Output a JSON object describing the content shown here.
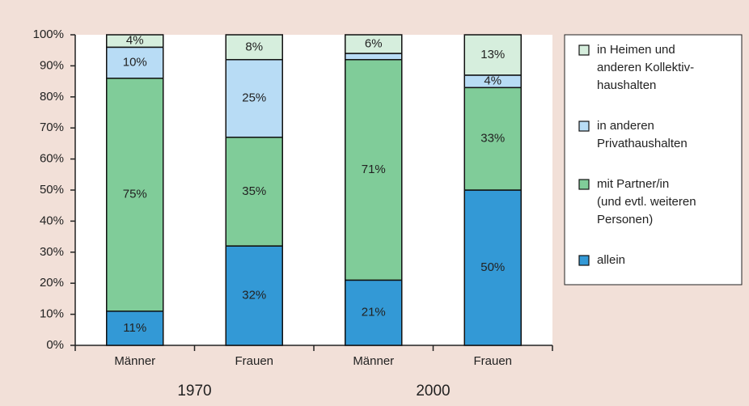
{
  "chart_data": {
    "type": "stacked_bar",
    "categories": [
      "Männer",
      "Frauen",
      "Männer",
      "Frauen"
    ],
    "groups": [
      "1970",
      "2000"
    ],
    "series": [
      {
        "name": "allein",
        "color": "#3399d6",
        "values": [
          11,
          32,
          21,
          50
        ],
        "value_labels": [
          "11%",
          "32%",
          "21%",
          "50%"
        ]
      },
      {
        "name": "mit Partner/in\n(und evtl. weiteren\nPersonen)",
        "color": "#80cc99",
        "values": [
          75,
          35,
          71,
          33
        ],
        "value_labels": [
          "75%",
          "35%",
          "71%",
          "33%"
        ]
      },
      {
        "name": "in anderen\nPrivathaushalten",
        "color": "#b8dcf5",
        "values": [
          10,
          25,
          2,
          4
        ],
        "value_labels": [
          "10%",
          "25%",
          null,
          "4%"
        ]
      },
      {
        "name": "in Heimen und\nanderen Kollektiv-\nhaushalten",
        "color": "#d6eedd",
        "values": [
          4,
          8,
          6,
          13
        ],
        "value_labels": [
          "4%",
          "8%",
          "6%",
          "13%"
        ]
      }
    ],
    "ylim": [
      0,
      100
    ],
    "yticks": [
      {
        "value": 0,
        "label": "0%"
      },
      {
        "value": 10,
        "label": "10%"
      },
      {
        "value": 20,
        "label": "20%"
      },
      {
        "value": 30,
        "label": "30%"
      },
      {
        "value": 40,
        "label": "40%"
      },
      {
        "value": 50,
        "label": "50%"
      },
      {
        "value": 60,
        "label": "60%"
      },
      {
        "value": 70,
        "label": "70%"
      },
      {
        "value": 80,
        "label": "80%"
      },
      {
        "value": 90,
        "label": "90%"
      },
      {
        "value": 100,
        "label": "100%"
      }
    ],
    "grid": false,
    "legend": "right"
  }
}
